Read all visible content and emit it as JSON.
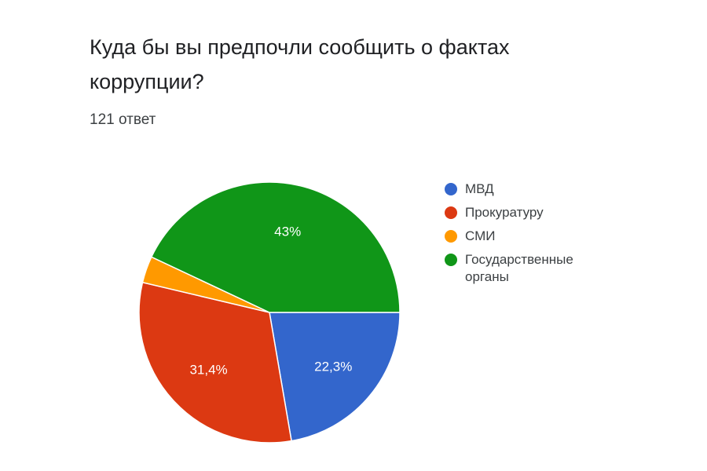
{
  "chart_data": {
    "type": "pie",
    "title": "Куда бы вы предпочли сообщить о фактах коррупции?",
    "subtitle": "121 ответ",
    "categories": [
      "МВД",
      "Прокуратуру",
      "СМИ",
      "Государственные органы"
    ],
    "values": [
      22.3,
      31.4,
      3.3,
      43
    ],
    "value_labels": [
      "22,3%",
      "31,4%",
      "",
      "43%"
    ],
    "colors": [
      "#3366cc",
      "#dc3912",
      "#ff9900",
      "#109618"
    ],
    "start_angle_deg": 0,
    "direction": "clockwise",
    "legend_position": "right"
  }
}
